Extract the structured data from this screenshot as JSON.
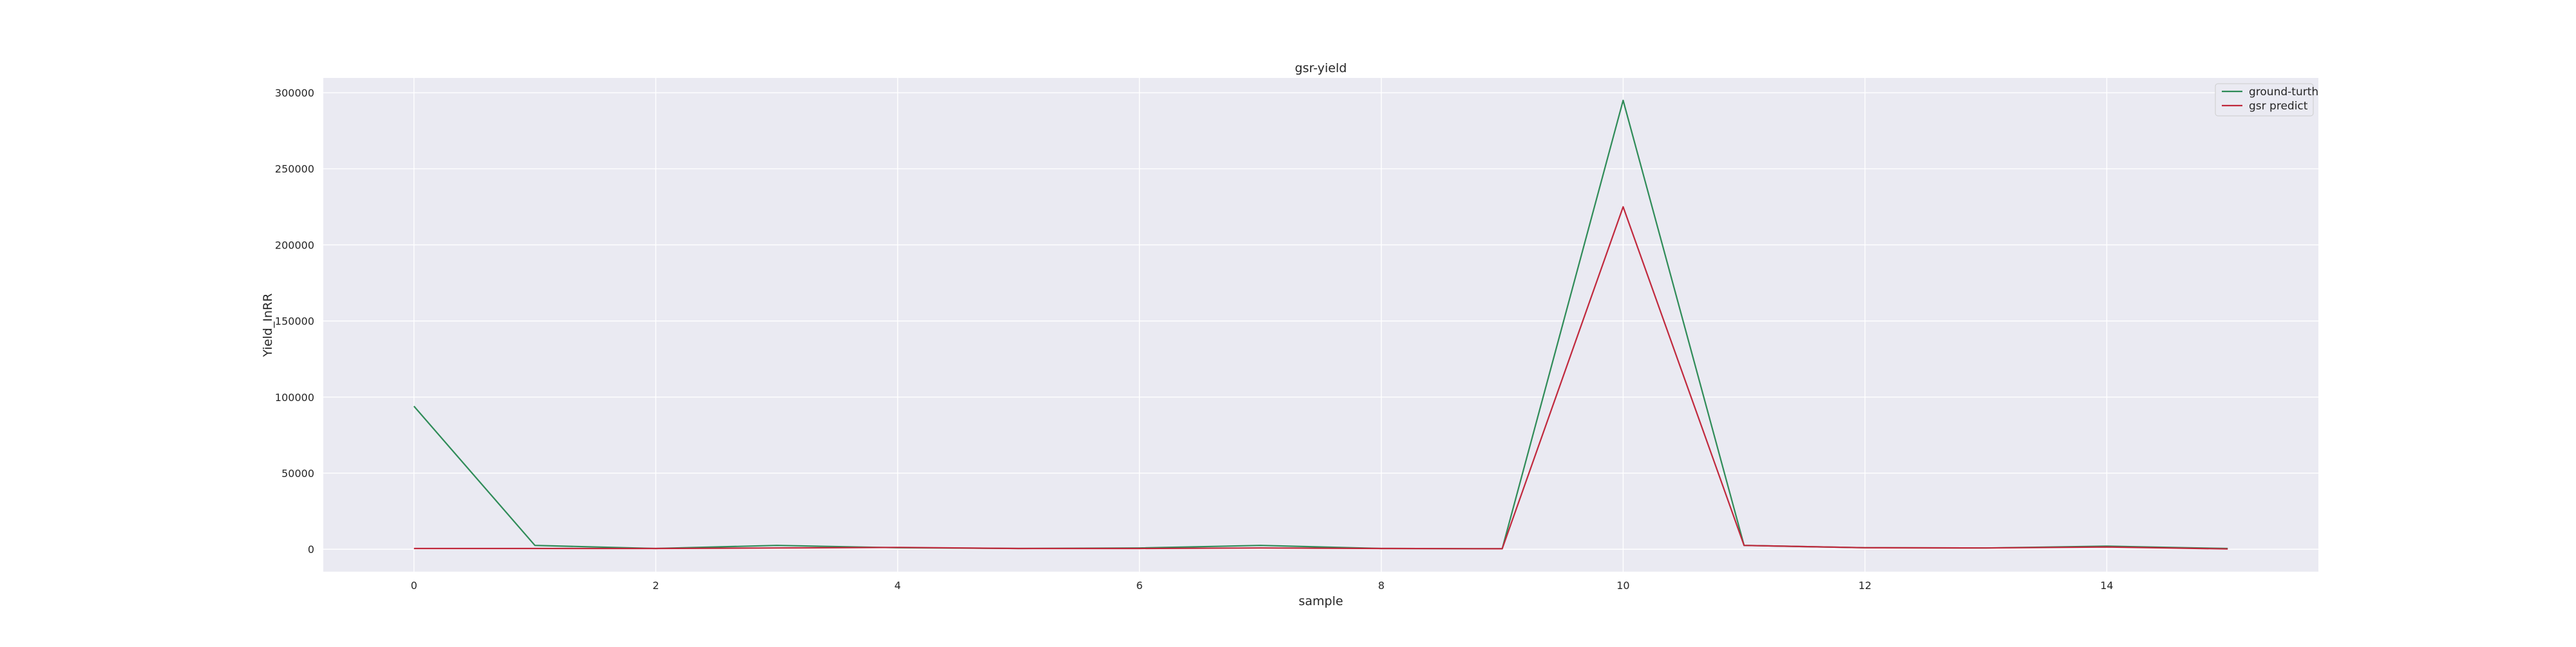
{
  "chart_data": {
    "type": "line",
    "title": "gsr-yield",
    "xlabel": "sample",
    "ylabel": "Yield_InRR",
    "xlim": [
      -0.75,
      15.75
    ],
    "ylim": [
      -14750,
      309750
    ],
    "xticks": [
      0,
      2,
      4,
      6,
      8,
      10,
      12,
      14
    ],
    "yticks": [
      0,
      50000,
      100000,
      150000,
      200000,
      250000,
      300000
    ],
    "grid": true,
    "legend_position": "top-right",
    "x": [
      0,
      1,
      2,
      3,
      4,
      5,
      6,
      7,
      8,
      9,
      10,
      11,
      12,
      13,
      14,
      15
    ],
    "series": [
      {
        "name": "ground-turth",
        "color": "#2e8b57",
        "values": [
          94000,
          2500,
          500,
          2500,
          1000,
          500,
          800,
          2500,
          500,
          300,
          295000,
          2500,
          1000,
          800,
          2000,
          500
        ]
      },
      {
        "name": "gsr predict",
        "color": "#c0283c",
        "values": [
          500,
          500,
          500,
          800,
          1200,
          500,
          500,
          800,
          500,
          300,
          225000,
          2500,
          1000,
          800,
          1500,
          200
        ]
      }
    ]
  }
}
